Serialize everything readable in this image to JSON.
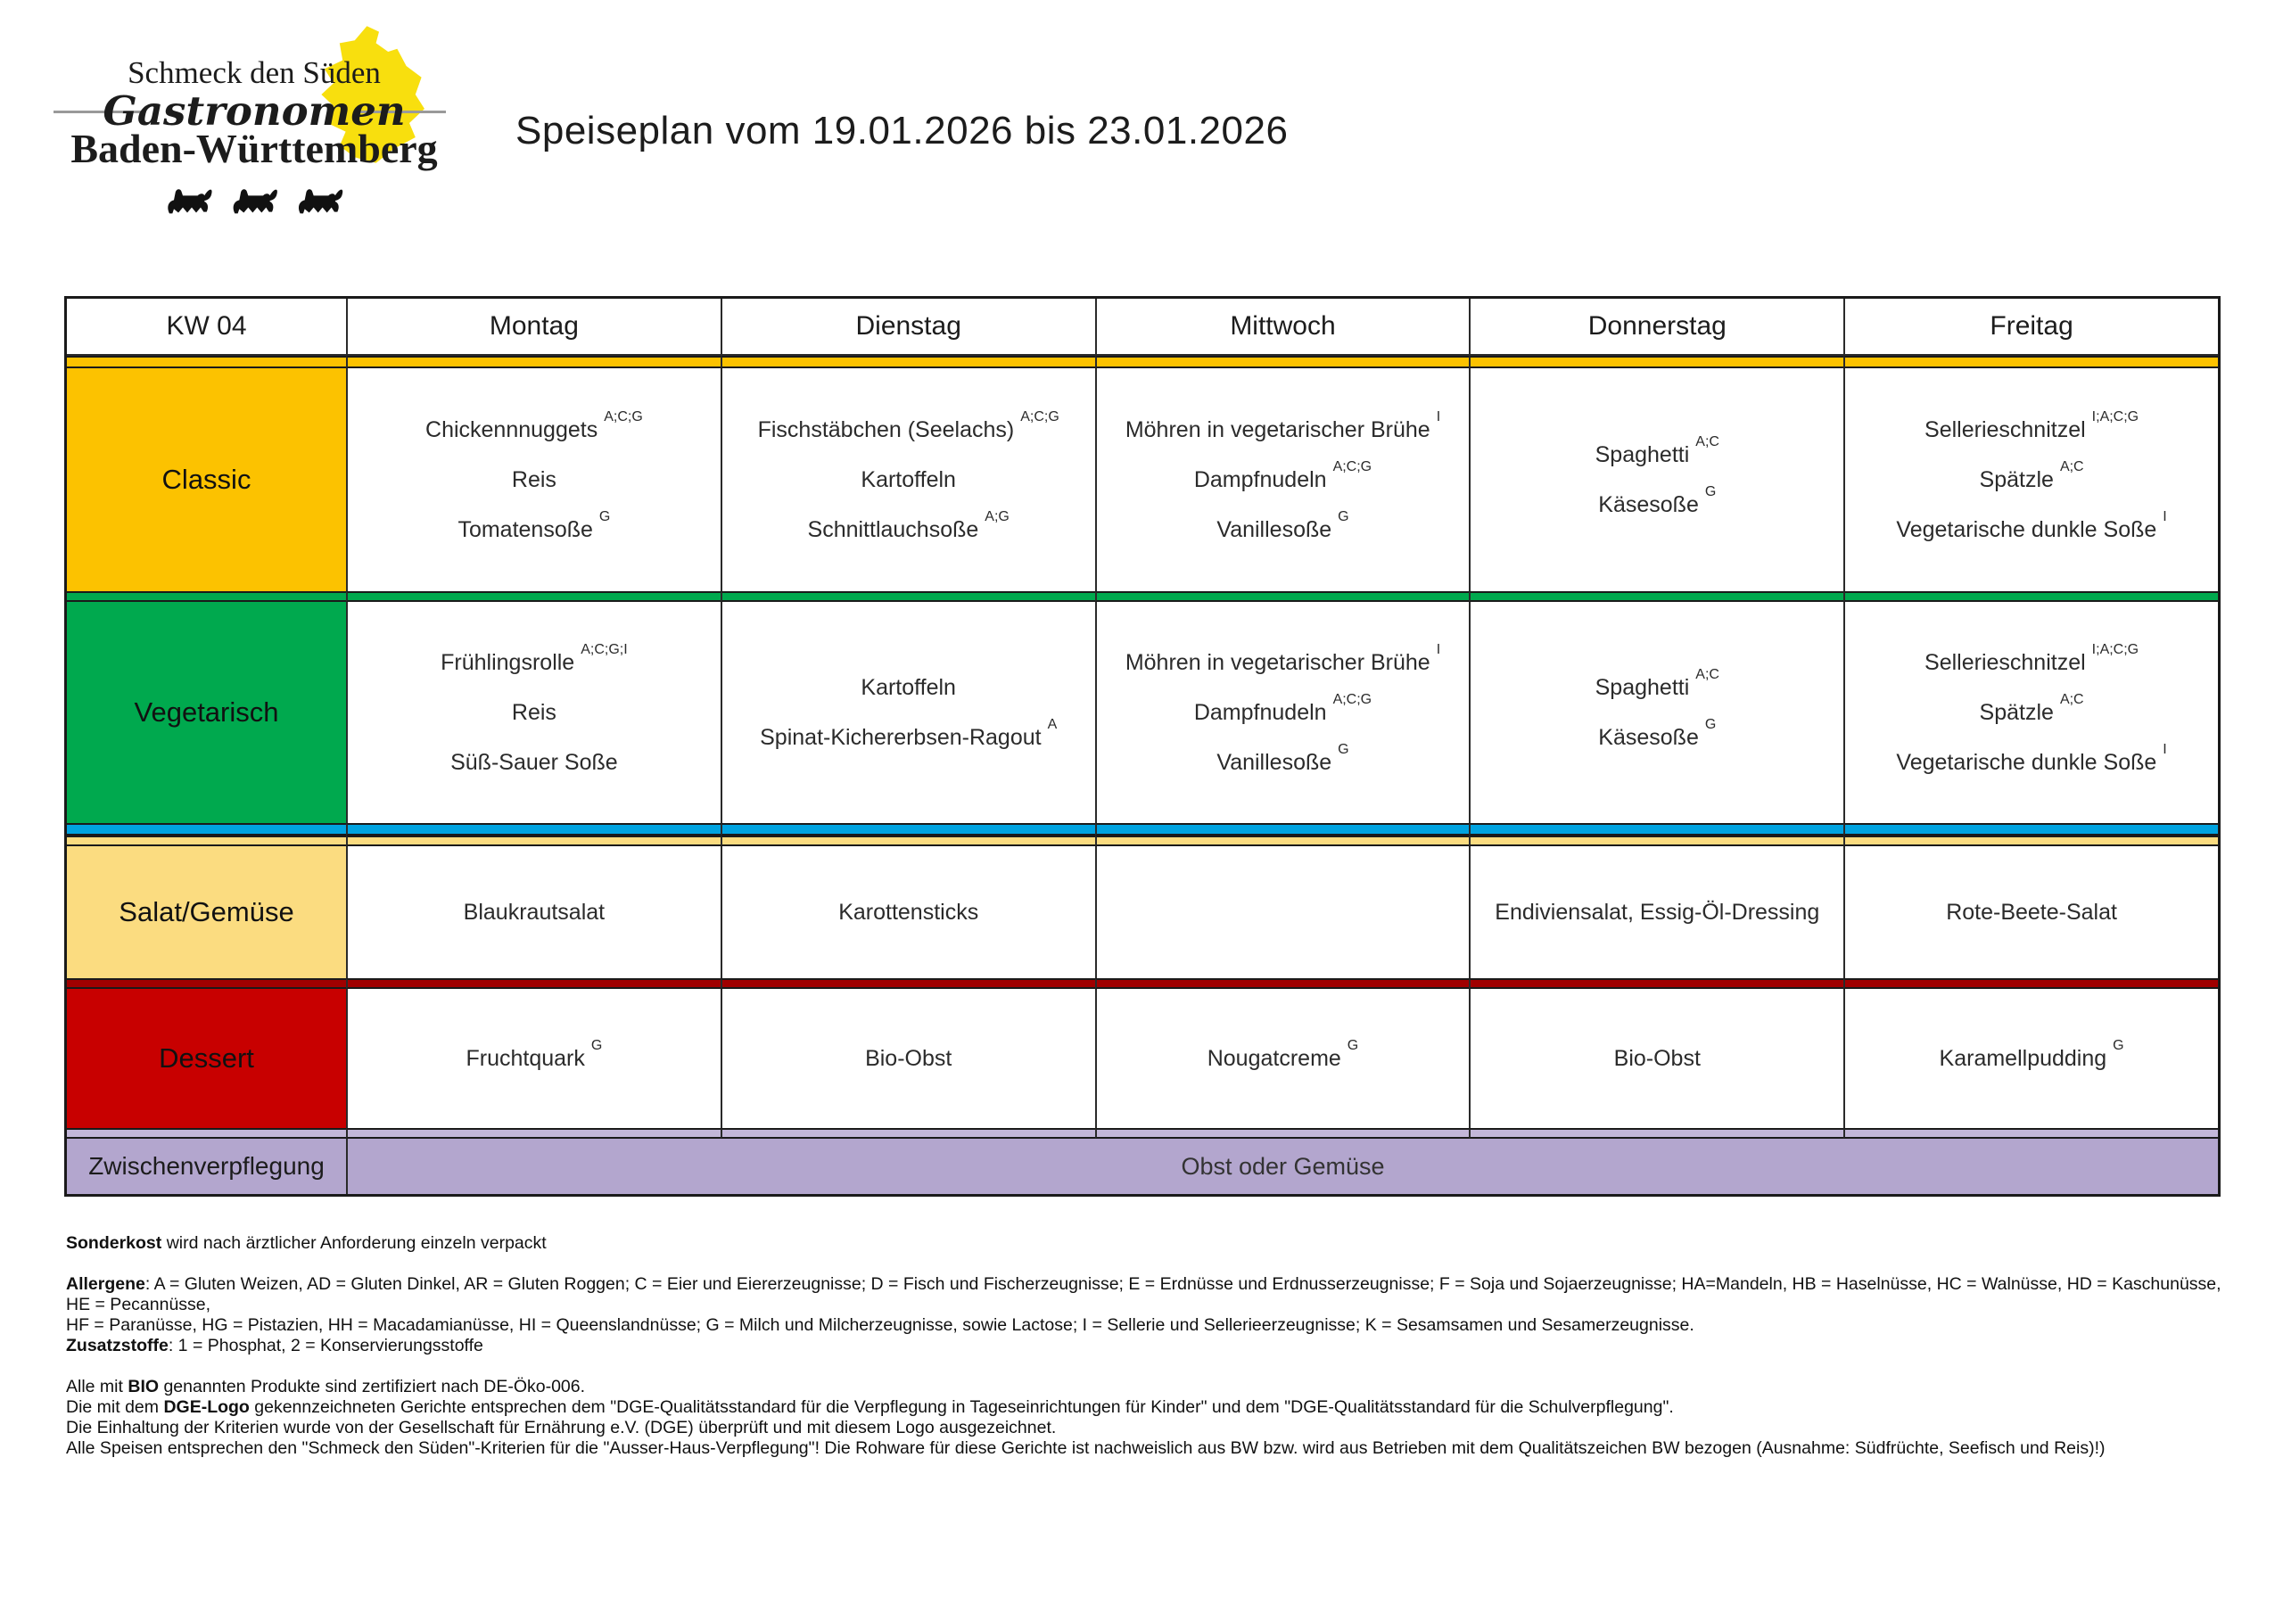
{
  "logo": {
    "line1": "Schmeck den Süden",
    "line2": "Gastronomen",
    "line3": "Baden-Württemberg"
  },
  "title": "Speiseplan vom 19.01.2026 bis 23.01.2026",
  "table": {
    "week_label": "KW 04",
    "days": [
      "Montag",
      "Dienstag",
      "Mittwoch",
      "Donnerstag",
      "Freitag"
    ]
  },
  "colors": {
    "classic": "#FCC200",
    "vegetarisch": "#00A94E",
    "salat": "#FBDC80",
    "dessert": "#C80000",
    "zwischenverpflegung": "#B3A6CE",
    "stripe_blue": "#00A3E0",
    "stripe_red": "#A00000",
    "map_yellow": "#F8DF0E"
  },
  "menu": {
    "categories": [
      {
        "id": "classic",
        "label": "Classic",
        "days": [
          [
            {
              "t": "Chickennnuggets",
              "s": "A;C;G"
            },
            {
              "t": "Reis",
              "s": ""
            },
            {
              "t": "Tomatensoße",
              "s": "G"
            }
          ],
          [
            {
              "t": "Fischstäbchen (Seelachs)",
              "s": "A;C;G"
            },
            {
              "t": "Kartoffeln",
              "s": ""
            },
            {
              "t": "Schnittlauchsoße",
              "s": "A;G"
            }
          ],
          [
            {
              "t": "Möhren in vegetarischer Brühe",
              "s": "I"
            },
            {
              "t": "Dampfnudeln",
              "s": "A;C;G"
            },
            {
              "t": "Vanillesoße",
              "s": "G"
            }
          ],
          [
            {
              "t": "Spaghetti",
              "s": "A;C"
            },
            {
              "t": "Käsesoße",
              "s": "G"
            }
          ],
          [
            {
              "t": "Sellerieschnitzel",
              "s": "I;A;C;G"
            },
            {
              "t": "Spätzle",
              "s": "A;C"
            },
            {
              "t": "Vegetarische dunkle Soße",
              "s": "I"
            }
          ]
        ]
      },
      {
        "id": "vegetarisch",
        "label": "Vegetarisch",
        "days": [
          [
            {
              "t": "Frühlingsrolle",
              "s": "A;C;G;I"
            },
            {
              "t": "Reis",
              "s": ""
            },
            {
              "t": "Süß-Sauer Soße",
              "s": ""
            }
          ],
          [
            {
              "t": "Kartoffeln",
              "s": ""
            },
            {
              "t": "Spinat-Kichererbsen-Ragout",
              "s": "A"
            }
          ],
          [
            {
              "t": "Möhren in vegetarischer Brühe",
              "s": "I"
            },
            {
              "t": "Dampfnudeln",
              "s": "A;C;G"
            },
            {
              "t": "Vanillesoße",
              "s": "G"
            }
          ],
          [
            {
              "t": "Spaghetti",
              "s": "A;C"
            },
            {
              "t": "Käsesoße",
              "s": "G"
            }
          ],
          [
            {
              "t": "Sellerieschnitzel",
              "s": "I;A;C;G"
            },
            {
              "t": "Spätzle",
              "s": "A;C"
            },
            {
              "t": "Vegetarische dunkle Soße",
              "s": "I"
            }
          ]
        ]
      },
      {
        "id": "salat",
        "label": "Salat/Gemüse",
        "days": [
          [
            {
              "t": "Blaukrautsalat",
              "s": ""
            }
          ],
          [
            {
              "t": "Karottensticks",
              "s": ""
            }
          ],
          [],
          [
            {
              "t": "Endiviensalat, Essig-Öl-Dressing",
              "s": ""
            }
          ],
          [
            {
              "t": "Rote-Beete-Salat",
              "s": ""
            }
          ]
        ]
      },
      {
        "id": "dessert",
        "label": "Dessert",
        "days": [
          [
            {
              "t": "Fruchtquark",
              "s": "G"
            }
          ],
          [
            {
              "t": "Bio-Obst",
              "s": ""
            }
          ],
          [
            {
              "t": "Nougatcreme",
              "s": "G"
            }
          ],
          [
            {
              "t": "Bio-Obst",
              "s": ""
            }
          ],
          [
            {
              "t": "Karamellpudding",
              "s": "G"
            }
          ]
        ]
      }
    ],
    "zwischen_label": "Zwischenverpflegung",
    "zwischen_content": "Obst oder Gemüse"
  },
  "notes": {
    "sonderkost_bold": "Sonderkost",
    "sonderkost_rest": " wird nach ärztlicher Anforderung einzeln verpackt",
    "allergene_bold": "Allergene",
    "allergene_rest": ": A = Gluten Weizen, AD = Gluten Dinkel, AR = Gluten Roggen; C = Eier und Eiererzeugnisse; D = Fisch und Fischerzeugnisse; E = Erdnüsse und Erdnusserzeugnisse; F = Soja und Sojaerzeugnisse; HA=Mandeln, HB = Haselnüsse, HC = Walnüsse, HD = Kaschunüsse, HE = Pecannüsse,",
    "allergene_line2": "HF = Paranüsse, HG = Pistazien, HH = Macadamianüsse, HI = Queenslandnüsse; G = Milch und Milcherzeugnisse, sowie Lactose; I = Sellerie und Sellerieerzeugnisse; K = Sesamsamen und Sesamerzeugnisse.",
    "zusatzstoffe_bold": "Zusatzstoffe",
    "zusatzstoffe_rest": ": 1 = Phosphat, 2 = Konservierungsstoffe",
    "bio_pre": "Alle mit ",
    "bio_bold": "BIO",
    "bio_post": " genannten Produkte sind zertifiziert nach DE-Öko-006.",
    "dge_pre": "Die mit dem ",
    "dge_bold": "DGE-Logo",
    "dge_post": " gekennzeichneten Gerichte entsprechen dem \"DGE-Qualitätsstandard für die Verpflegung in Tageseinrichtungen für Kinder\" und dem \"DGE-Qualitätsstandard für die Schulverpflegung\".",
    "dge_line2": "Die Einhaltung der Kriterien wurde von der Gesellschaft für Ernährung e.V. (DGE) überprüft und mit diesem Logo ausgezeichnet.",
    "schmeck_line": "Alle Speisen entsprechen den \"Schmeck den Süden\"-Kriterien für die \"Ausser-Haus-Verpflegung\"! Die Rohware für diese Gerichte ist nachweislich aus BW bzw. wird aus Betrieben mit dem Qualitätszeichen BW bezogen (Ausnahme: Südfrüchte, Seefisch und Reis)!)"
  }
}
